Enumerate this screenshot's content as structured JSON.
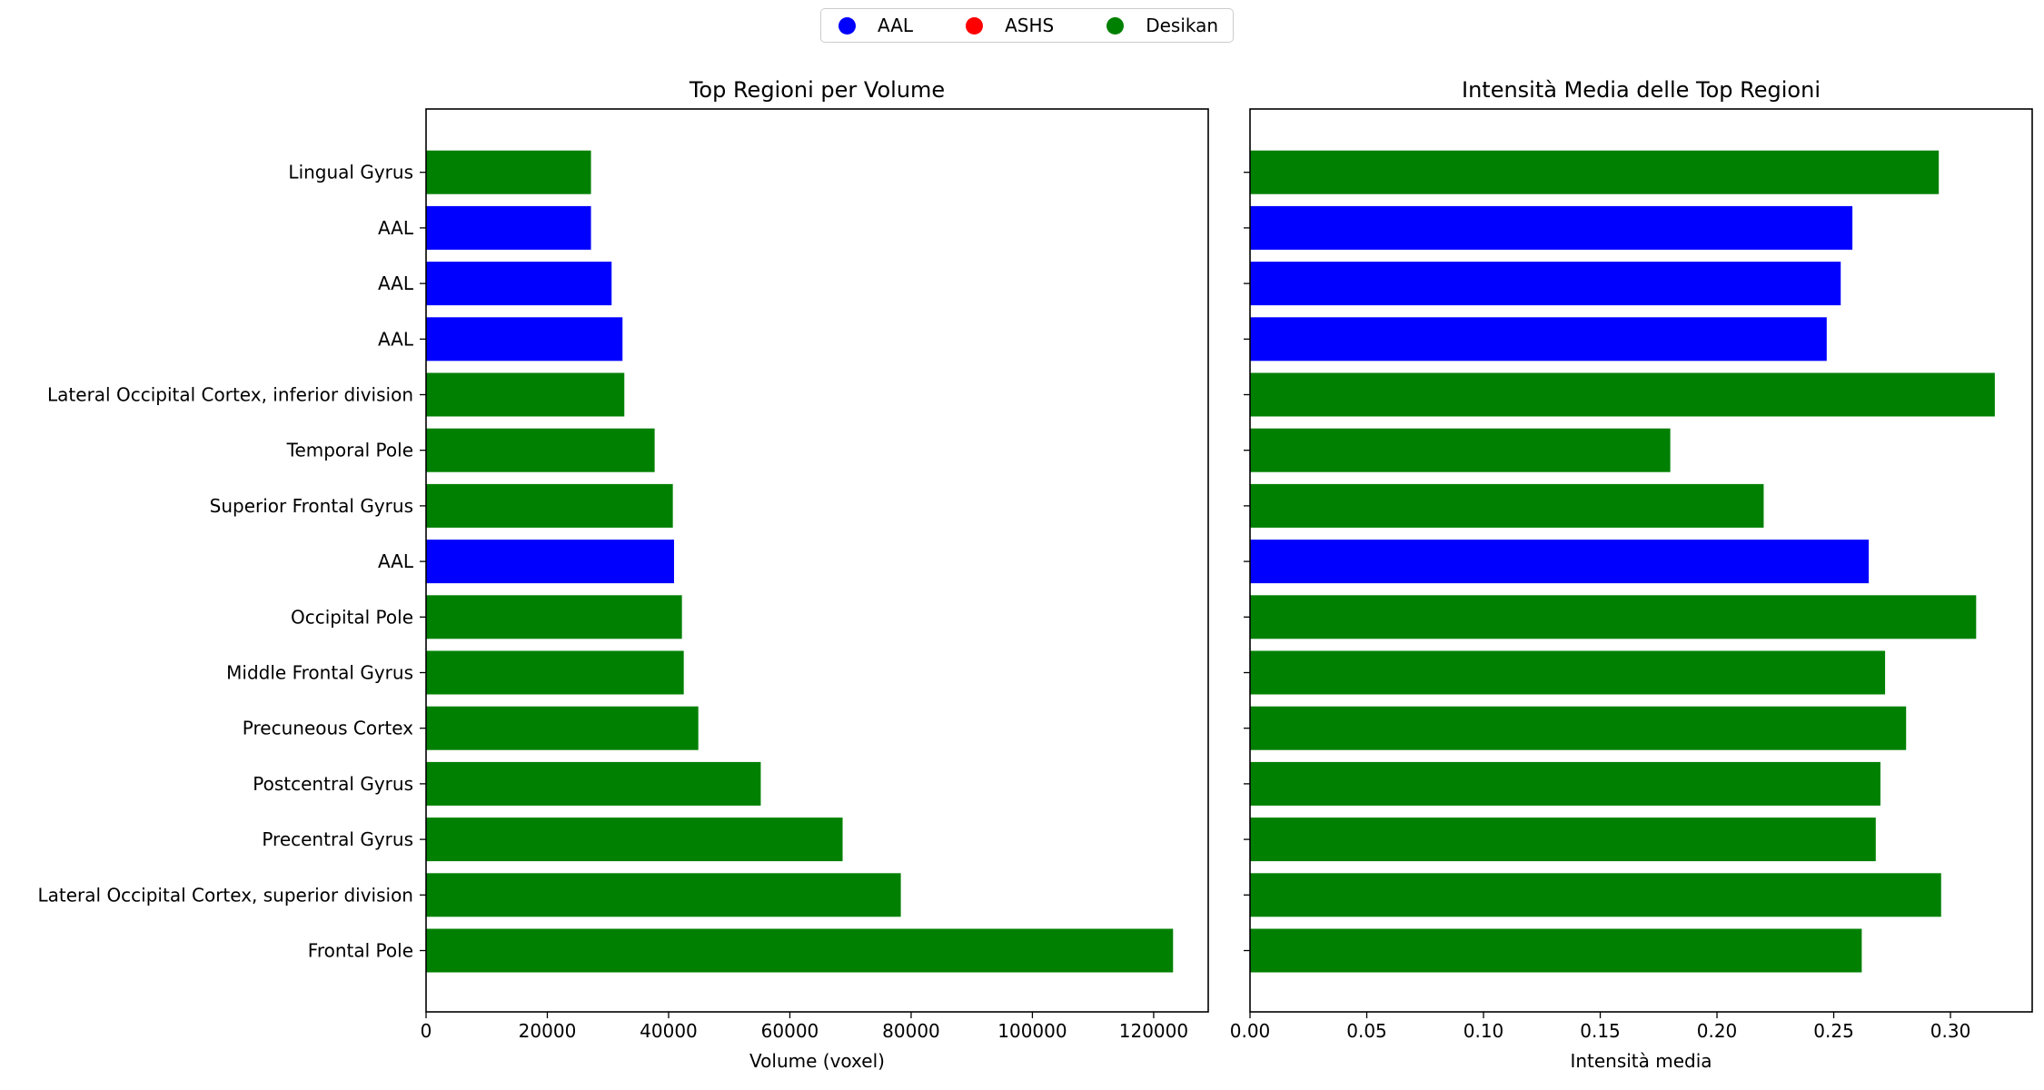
{
  "legend": {
    "items": [
      {
        "label": "AAL",
        "color": "#0000ff"
      },
      {
        "label": "ASHS",
        "color": "#ff0000"
      },
      {
        "label": "Desikan",
        "color": "#008000"
      }
    ]
  },
  "chart_data": [
    {
      "type": "bar",
      "orientation": "horizontal",
      "title": "Top Regioni per Volume",
      "xlabel": "Volume (voxel)",
      "ylabel": "",
      "xlim": [
        0,
        129000
      ],
      "xticks": [
        0,
        20000,
        40000,
        60000,
        80000,
        100000,
        120000
      ],
      "xtick_labels": [
        "0",
        "20000",
        "40000",
        "60000",
        "80000",
        "100000",
        "120000"
      ],
      "grid": false,
      "categories": [
        "Frontal Pole",
        "Lateral Occipital Cortex, superior division",
        "Precentral Gyrus",
        "Postcentral Gyrus",
        "Precuneous Cortex",
        "Middle Frontal Gyrus",
        "Occipital Pole",
        "AAL",
        "Superior Frontal Gyrus",
        "Temporal Pole",
        "Lateral Occipital Cortex, inferior division",
        "AAL",
        "AAL",
        "AAL",
        "Lingual Gyrus"
      ],
      "values": [
        123200,
        78300,
        68700,
        55200,
        44900,
        42500,
        42200,
        40900,
        40700,
        37700,
        32700,
        32400,
        30600,
        27200,
        27200
      ],
      "colors": [
        "#008000",
        "#008000",
        "#008000",
        "#008000",
        "#008000",
        "#008000",
        "#008000",
        "#0000ff",
        "#008000",
        "#008000",
        "#008000",
        "#0000ff",
        "#0000ff",
        "#0000ff",
        "#008000"
      ]
    },
    {
      "type": "bar",
      "orientation": "horizontal",
      "title": "Intensità Media delle Top Regioni",
      "xlabel": "Intensità media",
      "ylabel": "",
      "xlim": [
        0,
        0.335
      ],
      "xticks": [
        0,
        0.05,
        0.1,
        0.15,
        0.2,
        0.25,
        0.3
      ],
      "xtick_labels": [
        "0.00",
        "0.05",
        "0.10",
        "0.15",
        "0.20",
        "0.25",
        "0.30"
      ],
      "grid": false,
      "values": [
        0.262,
        0.296,
        0.268,
        0.27,
        0.281,
        0.272,
        0.311,
        0.265,
        0.22,
        0.18,
        0.319,
        0.247,
        0.253,
        0.258,
        0.295
      ],
      "colors": [
        "#008000",
        "#008000",
        "#008000",
        "#008000",
        "#008000",
        "#008000",
        "#008000",
        "#0000ff",
        "#008000",
        "#008000",
        "#008000",
        "#0000ff",
        "#0000ff",
        "#0000ff",
        "#008000"
      ]
    }
  ]
}
